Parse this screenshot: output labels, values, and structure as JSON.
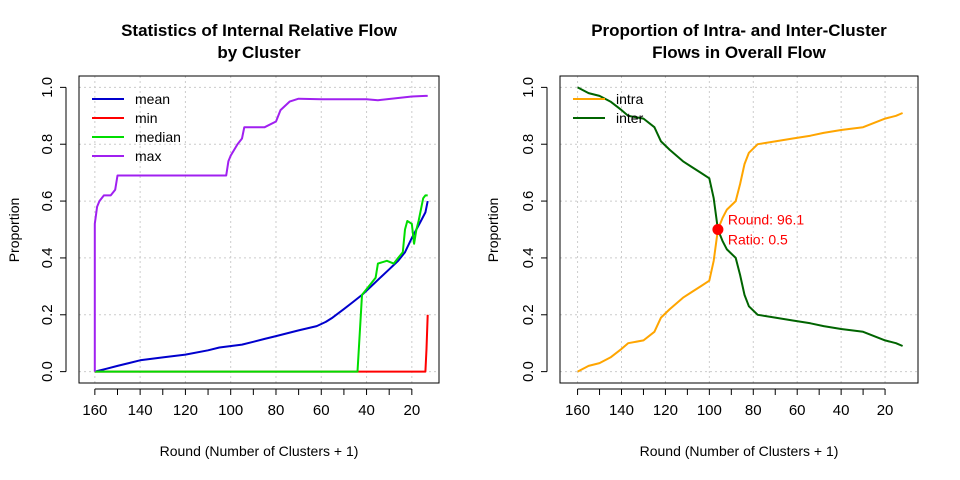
{
  "chart_data": [
    {
      "type": "line",
      "title_lines": [
        "Statistics of Internal Relative Flow",
        "by Cluster"
      ],
      "xlabel": "Round (Number of Clusters + 1)",
      "ylabel": "Proportion",
      "xlim": [
        167,
        8
      ],
      "ylim": [
        -0.04,
        1.04
      ],
      "xticks": [
        160,
        140,
        120,
        100,
        80,
        60,
        40,
        20
      ],
      "xtick_labels": [
        "160",
        "140",
        "120",
        "100",
        "80",
        "60",
        "40",
        "20"
      ],
      "yticks": [
        0,
        0.2,
        0.4,
        0.6,
        0.8,
        1.0
      ],
      "ytick_labels": [
        "0.0",
        "0.2",
        "0.4",
        "0.6",
        "0.8",
        "1.0"
      ],
      "grid": true,
      "legend": "top-left",
      "series": [
        {
          "name": "mean",
          "color": "#0000CD",
          "points": [
            [
              160,
              0
            ],
            [
              155,
              0.01
            ],
            [
              150,
              0.02
            ],
            [
              145,
              0.03
            ],
            [
              140,
              0.04
            ],
            [
              130,
              0.05
            ],
            [
              120,
              0.06
            ],
            [
              110,
              0.075
            ],
            [
              105,
              0.085
            ],
            [
              95,
              0.095
            ],
            [
              90,
              0.105
            ],
            [
              85,
              0.115
            ],
            [
              80,
              0.125
            ],
            [
              70,
              0.145
            ],
            [
              62,
              0.16
            ],
            [
              58,
              0.175
            ],
            [
              55,
              0.19
            ],
            [
              50,
              0.22
            ],
            [
              46,
              0.245
            ],
            [
              42,
              0.27
            ],
            [
              38,
              0.3
            ],
            [
              34,
              0.33
            ],
            [
              30,
              0.36
            ],
            [
              28,
              0.375
            ],
            [
              26,
              0.39
            ],
            [
              23,
              0.42
            ],
            [
              20,
              0.47
            ],
            [
              18,
              0.5
            ],
            [
              16,
              0.53
            ],
            [
              14,
              0.56
            ],
            [
              13,
              0.6
            ]
          ]
        },
        {
          "name": "min",
          "color": "#FF0000",
          "points": [
            [
              160,
              0
            ],
            [
              14,
              0
            ],
            [
              13.5,
              0.08
            ],
            [
              13,
              0.2
            ]
          ]
        },
        {
          "name": "median",
          "color": "#00DD00",
          "points": [
            [
              160,
              0
            ],
            [
              44,
              0
            ],
            [
              42,
              0.27
            ],
            [
              38,
              0.31
            ],
            [
              36,
              0.33
            ],
            [
              35,
              0.38
            ],
            [
              31,
              0.39
            ],
            [
              28,
              0.38
            ],
            [
              26,
              0.4
            ],
            [
              24,
              0.42
            ],
            [
              23,
              0.5
            ],
            [
              22,
              0.53
            ],
            [
              20,
              0.52
            ],
            [
              19,
              0.45
            ],
            [
              18,
              0.5
            ],
            [
              17,
              0.53
            ],
            [
              15,
              0.61
            ],
            [
              14,
              0.62
            ],
            [
              13,
              0.62
            ]
          ]
        },
        {
          "name": "max",
          "color": "#A020F0",
          "points": [
            [
              160,
              0
            ],
            [
              160,
              0.27
            ],
            [
              160,
              0.52
            ],
            [
              159,
              0.58
            ],
            [
              158,
              0.6
            ],
            [
              156,
              0.62
            ],
            [
              153,
              0.62
            ],
            [
              151,
              0.64
            ],
            [
              150,
              0.69
            ],
            [
              140,
              0.69
            ],
            [
              120,
              0.69
            ],
            [
              102,
              0.69
            ],
            [
              101,
              0.74
            ],
            [
              100,
              0.76
            ],
            [
              97,
              0.8
            ],
            [
              95,
              0.82
            ],
            [
              94,
              0.86
            ],
            [
              85,
              0.86
            ],
            [
              80,
              0.88
            ],
            [
              78,
              0.92
            ],
            [
              74,
              0.95
            ],
            [
              70,
              0.96
            ],
            [
              60,
              0.958
            ],
            [
              40,
              0.958
            ],
            [
              35,
              0.955
            ],
            [
              20,
              0.968
            ],
            [
              14,
              0.97
            ],
            [
              13,
              0.97
            ]
          ]
        }
      ]
    },
    {
      "type": "line",
      "title_lines": [
        "Proportion of Intra- and Inter-Cluster",
        "Flows in Overall Flow"
      ],
      "xlabel": "Round (Number of Clusters + 1)",
      "ylabel": "Proportion",
      "xlim": [
        168,
        5
      ],
      "ylim": [
        -0.04,
        1.04
      ],
      "xticks": [
        160,
        140,
        120,
        100,
        80,
        60,
        40,
        20
      ],
      "xtick_labels": [
        "160",
        "140",
        "120",
        "100",
        "80",
        "60",
        "40",
        "20"
      ],
      "yticks": [
        0,
        0.2,
        0.4,
        0.6,
        0.8,
        1.0
      ],
      "ytick_labels": [
        "0.0",
        "0.2",
        "0.4",
        "0.6",
        "0.8",
        "1.0"
      ],
      "grid": true,
      "legend": "top-left",
      "series": [
        {
          "name": "intra",
          "color": "#FFA500",
          "points": [
            [
              160,
              0
            ],
            [
              155,
              0.02
            ],
            [
              150,
              0.03
            ],
            [
              145,
              0.05
            ],
            [
              140,
              0.08
            ],
            [
              137,
              0.1
            ],
            [
              130,
              0.11
            ],
            [
              125,
              0.14
            ],
            [
              122,
              0.19
            ],
            [
              118,
              0.22
            ],
            [
              112,
              0.26
            ],
            [
              108,
              0.28
            ],
            [
              104,
              0.3
            ],
            [
              100,
              0.32
            ],
            [
              98,
              0.39
            ],
            [
              96.1,
              0.5
            ],
            [
              94,
              0.54
            ],
            [
              92,
              0.57
            ],
            [
              88,
              0.6
            ],
            [
              86,
              0.66
            ],
            [
              84,
              0.73
            ],
            [
              82,
              0.77
            ],
            [
              78,
              0.8
            ],
            [
              70,
              0.81
            ],
            [
              62,
              0.82
            ],
            [
              54,
              0.83
            ],
            [
              48,
              0.84
            ],
            [
              40,
              0.85
            ],
            [
              30,
              0.86
            ],
            [
              20,
              0.89
            ],
            [
              15,
              0.9
            ],
            [
              12,
              0.91
            ]
          ]
        },
        {
          "name": "inter",
          "color": "#006400",
          "points": [
            [
              160,
              1
            ],
            [
              155,
              0.98
            ],
            [
              150,
              0.97
            ],
            [
              145,
              0.95
            ],
            [
              140,
              0.92
            ],
            [
              137,
              0.9
            ],
            [
              130,
              0.89
            ],
            [
              125,
              0.86
            ],
            [
              122,
              0.81
            ],
            [
              118,
              0.78
            ],
            [
              112,
              0.74
            ],
            [
              108,
              0.72
            ],
            [
              104,
              0.7
            ],
            [
              100,
              0.68
            ],
            [
              98,
              0.61
            ],
            [
              96.1,
              0.5
            ],
            [
              94,
              0.46
            ],
            [
              92,
              0.43
            ],
            [
              88,
              0.4
            ],
            [
              86,
              0.34
            ],
            [
              84,
              0.27
            ],
            [
              82,
              0.23
            ],
            [
              78,
              0.2
            ],
            [
              70,
              0.19
            ],
            [
              62,
              0.18
            ],
            [
              54,
              0.17
            ],
            [
              48,
              0.16
            ],
            [
              40,
              0.15
            ],
            [
              30,
              0.14
            ],
            [
              20,
              0.11
            ],
            [
              15,
              0.1
            ],
            [
              12,
              0.09
            ]
          ]
        }
      ],
      "highlight": {
        "round": 96.1,
        "ratio": 0.5,
        "color": "#FF0000"
      },
      "annotations": [
        "Round: 96.1",
        "Ratio: 0.5"
      ]
    }
  ]
}
